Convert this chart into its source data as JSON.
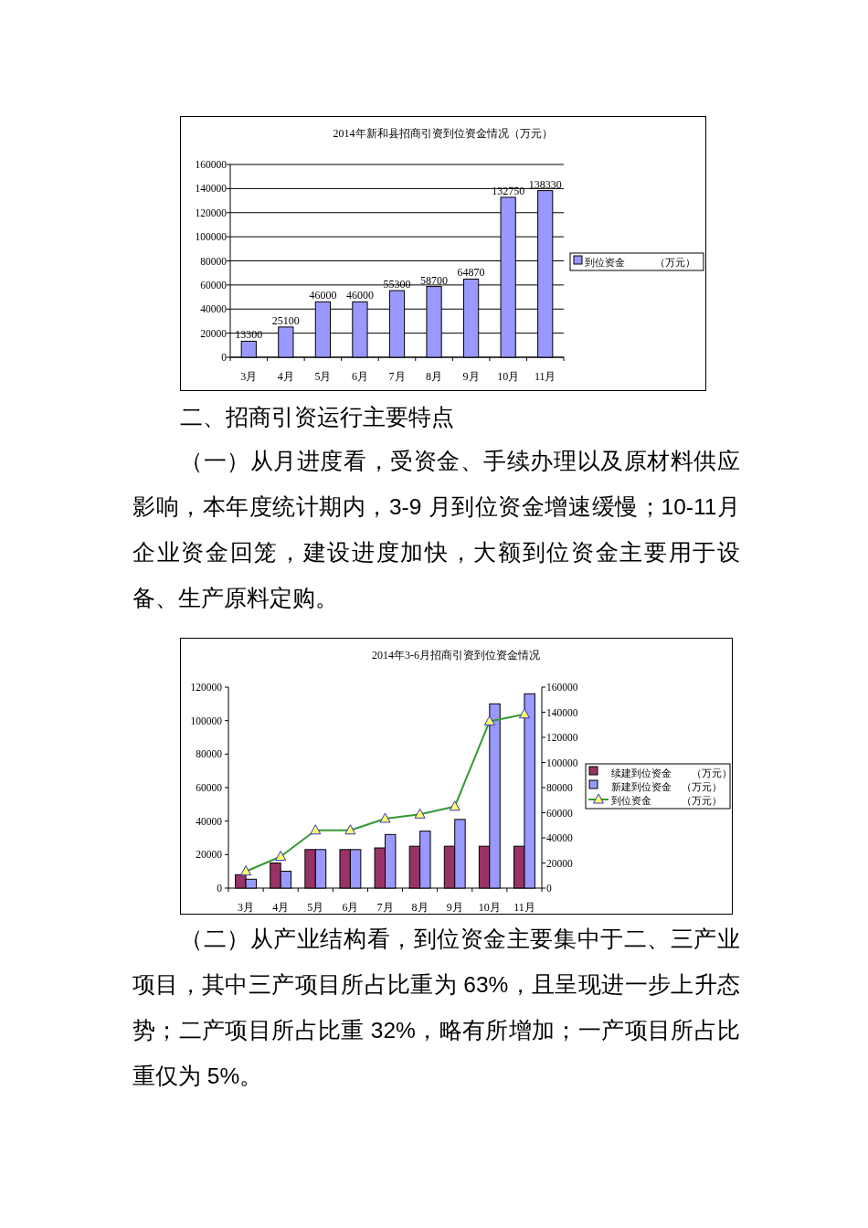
{
  "chart_data": [
    {
      "type": "bar",
      "title": "2014年新和县招商引资到位资金情况（万元）",
      "categories": [
        "3月",
        "4月",
        "5月",
        "6月",
        "7月",
        "8月",
        "9月",
        "10月",
        "11月"
      ],
      "series": [
        {
          "name": "到位资金　　　（万元）",
          "color": "#9999ff",
          "values": [
            13300,
            25100,
            46000,
            46000,
            55300,
            58700,
            64870,
            132750,
            138330
          ]
        }
      ],
      "ylim": [
        0,
        160000
      ],
      "yticks": [
        0,
        20000,
        40000,
        60000,
        80000,
        100000,
        120000,
        140000,
        160000
      ],
      "grid": "y",
      "legend": "right",
      "data_labels": true,
      "annotations": [
        "二、招商引资运行主要特点",
        "（一）从月进度看，受资金、手续办理以及原材料供应影响，本年度统计期内，3-9 月到位资金增速缓慢；10-11月企业资金回笼，建设进度加快，大额到位资金主要用于设备、生产原料定购。"
      ]
    },
    {
      "type": "bar",
      "title": "2014年3-6月招商引资到位资金情况",
      "categories": [
        "3月",
        "4月",
        "5月",
        "6月",
        "7月",
        "8月",
        "9月",
        "10月",
        "11月"
      ],
      "series": [
        {
          "name": "续建到位资金　　（万元）",
          "color": "#993366",
          "values": [
            8000,
            15000,
            23000,
            23000,
            24000,
            25000,
            25000,
            25000,
            25000
          ]
        },
        {
          "name": "新建到位资金　（万元）",
          "color": "#9999ff",
          "values": [
            5300,
            10100,
            23000,
            23000,
            32000,
            34000,
            41000,
            110000,
            116000
          ]
        },
        {
          "name": "到位资金　　　（万元）",
          "color": "#339933",
          "type": "line",
          "axis": "y2",
          "marker": "triangle",
          "values": [
            13300,
            25100,
            46000,
            46000,
            55300,
            58700,
            64870,
            132750,
            138330
          ]
        }
      ],
      "ylim": [
        0,
        120000
      ],
      "yticks": [
        0,
        20000,
        40000,
        60000,
        80000,
        100000,
        120000
      ],
      "y2lim": [
        0,
        160000
      ],
      "y2ticks": [
        0,
        20000,
        40000,
        60000,
        80000,
        100000,
        120000,
        140000,
        160000
      ],
      "grid": false,
      "legend": "right",
      "annotations": [
        "（二）从产业结构看，到位资金主要集中于二、三产业项目，其中三产项目所占比重为 63%，且呈现进一步上升态势；二产项目所占比重 32%，略有所增加；一产项目所占比重仅为 5%。"
      ]
    }
  ]
}
